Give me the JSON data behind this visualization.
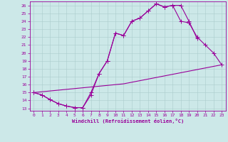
{
  "xlabel": "Windchill (Refroidissement éolien,°C)",
  "bg_color": "#cce8e8",
  "line_color": "#990099",
  "xlim": [
    -0.5,
    23.5
  ],
  "ylim": [
    12.7,
    26.5
  ],
  "yticks": [
    13,
    14,
    15,
    16,
    17,
    18,
    19,
    20,
    21,
    22,
    23,
    24,
    25,
    26
  ],
  "xticks": [
    0,
    1,
    2,
    3,
    4,
    5,
    6,
    7,
    8,
    9,
    10,
    11,
    12,
    13,
    14,
    15,
    16,
    17,
    18,
    19,
    20,
    21,
    22,
    23
  ],
  "line1_x": [
    0,
    1,
    2,
    3,
    4,
    5,
    6,
    7,
    8,
    9,
    10,
    11,
    12,
    13,
    14,
    15,
    16,
    17,
    18,
    19,
    20
  ],
  "line1_y": [
    15.0,
    14.7,
    14.1,
    13.6,
    13.3,
    13.1,
    13.1,
    14.7,
    17.4,
    19.0,
    22.5,
    22.2,
    24.0,
    24.4,
    25.3,
    26.2,
    25.8,
    26.0,
    26.0,
    24.0,
    21.8
  ],
  "line2_x": [
    0,
    1,
    2,
    3,
    4,
    5,
    6,
    7,
    8,
    9,
    10,
    11,
    12,
    13,
    14,
    15,
    16,
    17,
    18,
    19,
    20,
    21,
    22,
    23
  ],
  "line2_y": [
    15.0,
    14.7,
    14.1,
    13.6,
    13.3,
    13.1,
    13.1,
    15.0,
    17.4,
    19.0,
    22.5,
    22.2,
    24.0,
    24.4,
    25.3,
    26.2,
    25.8,
    26.0,
    24.0,
    23.8,
    22.0,
    21.0,
    20.0,
    18.5
  ],
  "line3_x": [
    0,
    1,
    2,
    3,
    4,
    5,
    6,
    7,
    8,
    9,
    10,
    11,
    12,
    13,
    14,
    15,
    16,
    17,
    18,
    19,
    20,
    21,
    22,
    23
  ],
  "line3_y": [
    15.0,
    15.1,
    15.2,
    15.3,
    15.4,
    15.5,
    15.6,
    15.7,
    15.8,
    15.9,
    16.0,
    16.1,
    16.3,
    16.5,
    16.7,
    16.9,
    17.1,
    17.3,
    17.5,
    17.7,
    17.9,
    18.1,
    18.3,
    18.5
  ],
  "grid_color": "#aacccc",
  "markersize": 2.2,
  "tick_labelsize": 4.5,
  "xlabel_fontsize": 5.0
}
